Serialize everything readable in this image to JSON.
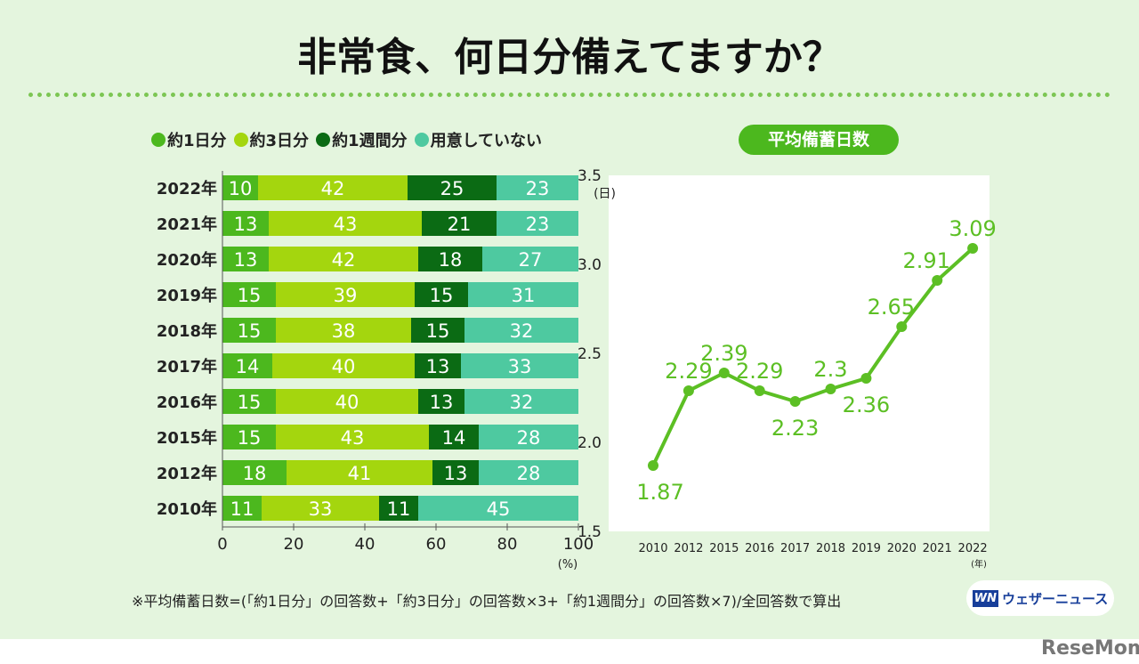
{
  "title": "非常食、何日分備えてますか？",
  "chart_data": [
    {
      "type": "bar",
      "stacked": true,
      "orientation": "horizontal",
      "categories": [
        "2022年",
        "2021年",
        "2020年",
        "2019年",
        "2018年",
        "2017年",
        "2016年",
        "2015年",
        "2012年",
        "2010年"
      ],
      "series": [
        {
          "name": "約1日分",
          "color": "#4cb81e",
          "values": [
            10,
            13,
            13,
            15,
            15,
            14,
            15,
            15,
            18,
            11
          ]
        },
        {
          "name": "約3日分",
          "color": "#a4d60e",
          "values": [
            42,
            43,
            42,
            39,
            38,
            40,
            40,
            43,
            41,
            33
          ]
        },
        {
          "name": "約1週間分",
          "color": "#0b6b14",
          "values": [
            25,
            21,
            18,
            15,
            15,
            13,
            13,
            14,
            13,
            11
          ]
        },
        {
          "name": "用意していない",
          "color": "#4ec9a0",
          "values": [
            23,
            23,
            27,
            31,
            32,
            33,
            32,
            28,
            28,
            45
          ]
        }
      ],
      "xlim": [
        0,
        100
      ],
      "xticks": [
        "0",
        "20",
        "40",
        "60",
        "80",
        "100"
      ],
      "xlabel": "(%)",
      "legend": "top"
    },
    {
      "type": "line",
      "title": "平均備蓄日数",
      "color": "#5cbf24",
      "x": [
        "2010",
        "2012",
        "2015",
        "2016",
        "2017",
        "2018",
        "2019",
        "2020",
        "2021",
        "2022"
      ],
      "values": [
        1.87,
        2.29,
        2.39,
        2.29,
        2.23,
        2.3,
        2.36,
        2.65,
        2.91,
        3.09
      ],
      "labels": [
        "1.87",
        "2.29",
        "2.39",
        "2.29",
        "2.23",
        "2.3",
        "2.36",
        "2.65",
        "2.91",
        "3.09"
      ],
      "ylim": [
        1.5,
        3.5
      ],
      "yticks": [
        "1.5",
        "2.0",
        "2.5",
        "3.0",
        "3.5"
      ],
      "ylabel": "(日)",
      "xlabel": "(年)"
    }
  ],
  "note": "※平均備蓄日数=(「約1日分」の回答数+「約3日分」の回答数×3+「約1週間分」の回答数×7)/全回答数で算出",
  "logo": {
    "mark": "WN",
    "text": "ウェザーニュース"
  },
  "watermark": "ReseMom"
}
